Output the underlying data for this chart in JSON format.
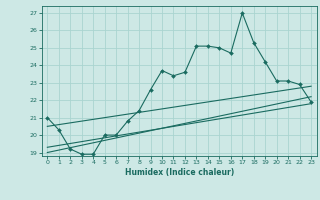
{
  "title": "",
  "xlabel": "Humidex (Indice chaleur)",
  "ylabel": "",
  "bg_color": "#cde8e5",
  "grid_color": "#aad4d0",
  "line_color": "#1a6b60",
  "xlim": [
    -0.5,
    23.5
  ],
  "ylim": [
    18.8,
    27.4
  ],
  "xticks": [
    0,
    1,
    2,
    3,
    4,
    5,
    6,
    7,
    8,
    9,
    10,
    11,
    12,
    13,
    14,
    15,
    16,
    17,
    18,
    19,
    20,
    21,
    22,
    23
  ],
  "yticks": [
    19,
    20,
    21,
    22,
    23,
    24,
    25,
    26,
    27
  ],
  "series1": {
    "x": [
      0,
      1,
      2,
      3,
      4,
      5,
      6,
      7,
      8,
      9,
      10,
      11,
      12,
      13,
      14,
      15,
      16,
      17,
      18,
      19,
      20,
      21,
      22,
      23
    ],
    "y": [
      21.0,
      20.3,
      19.2,
      18.9,
      18.9,
      20.0,
      20.0,
      20.8,
      21.4,
      22.6,
      23.7,
      23.4,
      23.6,
      25.1,
      25.1,
      25.0,
      24.7,
      27.0,
      25.3,
      24.2,
      23.1,
      23.1,
      22.9,
      21.9
    ]
  },
  "series2": {
    "x": [
      0,
      23
    ],
    "y": [
      19.3,
      21.8
    ]
  },
  "series3": {
    "x": [
      0,
      23
    ],
    "y": [
      19.0,
      22.2
    ]
  },
  "series4": {
    "x": [
      0,
      23
    ],
    "y": [
      20.5,
      22.8
    ]
  }
}
